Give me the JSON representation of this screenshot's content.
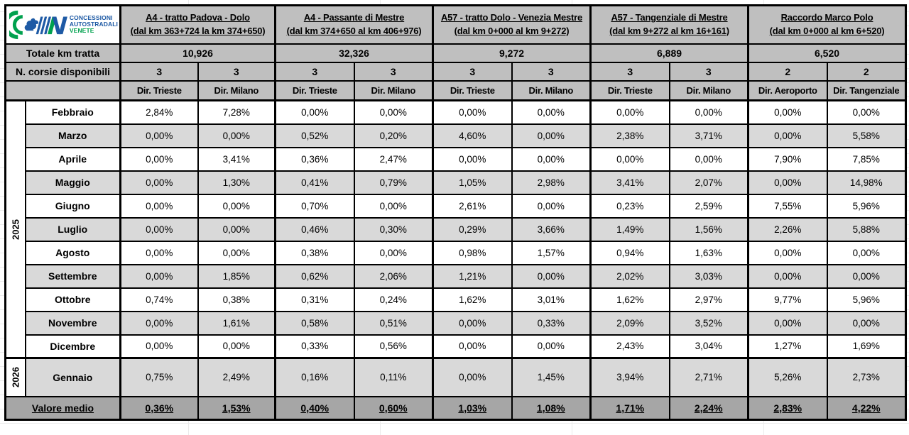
{
  "logo": {
    "line1": "CONCESSIONI",
    "line2": "AUTOSTRADALI",
    "line3": "VENETE"
  },
  "labels": {
    "total_km": "Totale km tratta",
    "lanes": "N. corsie disponibili"
  },
  "sections": [
    {
      "title": "A4 - tratto Padova - Dolo",
      "range": "(dal km 363+724 la km 374+650)",
      "total_km": "10,926",
      "lanes": [
        "3",
        "3"
      ],
      "directions": [
        "Dir. Trieste",
        "Dir. Milano"
      ]
    },
    {
      "title": "A4 - Passante di Mestre",
      "range": "(dal km 374+650 al km 406+976)",
      "total_km": "32,326",
      "lanes": [
        "3",
        "3"
      ],
      "directions": [
        "Dir. Trieste",
        "Dir. Milano"
      ]
    },
    {
      "title": "A57 - tratto Dolo - Venezia Mestre",
      "range": "(dal km 0+000 al km 9+272)",
      "total_km": "9,272",
      "lanes": [
        "3",
        "3"
      ],
      "directions": [
        "Dir. Trieste",
        "Dir. Milano"
      ]
    },
    {
      "title": "A57 - Tangenziale di Mestre",
      "range": "(dal km 9+272 al km 16+161)",
      "total_km": "6,889",
      "lanes": [
        "3",
        "3"
      ],
      "directions": [
        "Dir. Trieste",
        "Dir. Milano"
      ]
    },
    {
      "title": "Raccordo Marco Polo",
      "range": "(dal km 0+000 al km 6+520)",
      "total_km": "6,520",
      "lanes": [
        "2",
        "2"
      ],
      "directions": [
        "Dir. Aeroporto",
        "Dir. Tangenziale"
      ]
    }
  ],
  "years": [
    {
      "label": "2025",
      "row_span": 11
    },
    {
      "label": "2026",
      "row_span": 1
    }
  ],
  "rows": [
    {
      "year_index": 0,
      "month": "Febbraio",
      "values": [
        "2,84%",
        "7,28%",
        "0,00%",
        "0,00%",
        "0,00%",
        "0,00%",
        "0,00%",
        "0,00%",
        "0,00%",
        "0,00%"
      ]
    },
    {
      "year_index": 0,
      "month": "Marzo",
      "values": [
        "0,00%",
        "0,00%",
        "0,52%",
        "0,20%",
        "4,60%",
        "0,00%",
        "2,38%",
        "3,71%",
        "0,00%",
        "5,58%"
      ]
    },
    {
      "year_index": 0,
      "month": "Aprile",
      "values": [
        "0,00%",
        "3,41%",
        "0,36%",
        "2,47%",
        "0,00%",
        "0,00%",
        "0,00%",
        "0,00%",
        "7,90%",
        "7,85%"
      ]
    },
    {
      "year_index": 0,
      "month": "Maggio",
      "values": [
        "0,00%",
        "1,30%",
        "0,41%",
        "0,79%",
        "1,05%",
        "2,98%",
        "3,41%",
        "2,07%",
        "0,00%",
        "14,98%"
      ]
    },
    {
      "year_index": 0,
      "month": "Giugno",
      "values": [
        "0,00%",
        "0,00%",
        "0,70%",
        "0,00%",
        "2,61%",
        "0,00%",
        "0,23%",
        "2,59%",
        "7,55%",
        "5,96%"
      ]
    },
    {
      "year_index": 0,
      "month": "Luglio",
      "values": [
        "0,00%",
        "0,00%",
        "0,46%",
        "0,30%",
        "0,29%",
        "3,66%",
        "1,49%",
        "1,56%",
        "2,26%",
        "5,88%"
      ]
    },
    {
      "year_index": 0,
      "month": "Agosto",
      "values": [
        "0,00%",
        "0,00%",
        "0,38%",
        "0,00%",
        "0,98%",
        "1,57%",
        "0,94%",
        "1,63%",
        "0,00%",
        "0,00%"
      ]
    },
    {
      "year_index": 0,
      "month": "Settembre",
      "values": [
        "0,00%",
        "1,85%",
        "0,62%",
        "2,06%",
        "1,21%",
        "0,00%",
        "2,02%",
        "3,03%",
        "0,00%",
        "0,00%"
      ]
    },
    {
      "year_index": 0,
      "month": "Ottobre",
      "values": [
        "0,74%",
        "0,38%",
        "0,31%",
        "0,24%",
        "1,62%",
        "3,01%",
        "1,62%",
        "2,97%",
        "9,77%",
        "5,96%"
      ]
    },
    {
      "year_index": 0,
      "month": "Novembre",
      "values": [
        "0,00%",
        "1,61%",
        "0,58%",
        "0,51%",
        "0,00%",
        "0,33%",
        "2,09%",
        "3,52%",
        "0,00%",
        "0,00%"
      ]
    },
    {
      "year_index": 0,
      "month": "Dicembre",
      "values": [
        "0,00%",
        "0,00%",
        "0,33%",
        "0,56%",
        "0,00%",
        "0,00%",
        "2,43%",
        "3,04%",
        "1,27%",
        "1,69%"
      ]
    },
    {
      "year_index": 1,
      "month": "Gennaio",
      "values": [
        "0,75%",
        "2,49%",
        "0,16%",
        "0,11%",
        "0,00%",
        "1,45%",
        "3,94%",
        "2,71%",
        "5,26%",
        "2,73%"
      ]
    }
  ],
  "footer": {
    "label": "Valore medio",
    "values": [
      "0,36%",
      "1,53%",
      "0,40%",
      "0,60%",
      "1,03%",
      "1,08%",
      "1,71%",
      "2,24%",
      "2,83%",
      "4,22%"
    ]
  },
  "colors": {
    "header_bg": "#bfbfbf",
    "shaded_row_bg": "#d9d9d9",
    "footer_bg": "#a6a6a6",
    "border": "#000000",
    "logo_blue": "#1e5aa5",
    "logo_green": "#00a14e"
  }
}
